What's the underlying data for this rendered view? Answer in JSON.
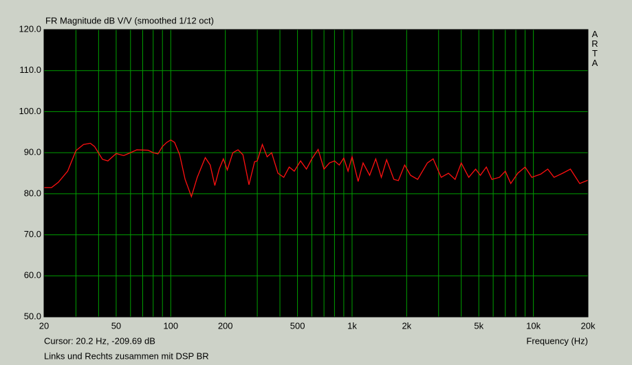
{
  "chart_data": {
    "type": "line",
    "title": "FR Magnitude dB V/V (smoothed 1/12 oct)",
    "brand": "ARTA",
    "cursor_text": "Cursor: 20.2 Hz, -209.69 dB",
    "note": "Links und Rechts zusammen mit DSP BR",
    "x_label": "Frequency (Hz)",
    "log_x": true,
    "grid": true,
    "color": "#ff1010",
    "xlim": [
      20,
      20000
    ],
    "ylim": [
      50,
      120
    ],
    "xticks": [
      20,
      50,
      100,
      200,
      500,
      {
        "value": 1000,
        "label": "1k"
      },
      {
        "value": 2000,
        "label": "2k"
      },
      {
        "value": 5000,
        "label": "5k"
      },
      {
        "value": 10000,
        "label": "10k"
      },
      {
        "value": 20000,
        "label": "20k"
      }
    ],
    "xminorticks": [
      30,
      40,
      60,
      70,
      80,
      90,
      300,
      400,
      600,
      700,
      800,
      900,
      3000,
      4000,
      6000,
      7000,
      8000,
      9000
    ],
    "yticks": [
      {
        "value": 50,
        "label": "50.0"
      },
      {
        "value": 60,
        "label": "60.0"
      },
      {
        "value": 70,
        "label": "70.0"
      },
      {
        "value": 80,
        "label": "80.0"
      },
      {
        "value": 90,
        "label": "90.0"
      },
      {
        "value": 100,
        "label": "100.0"
      },
      {
        "value": 110,
        "label": "110.0"
      },
      {
        "value": 120,
        "label": "120.0"
      }
    ],
    "x": [
      20,
      22,
      24,
      27,
      30,
      33,
      36,
      38,
      42,
      45,
      50,
      55,
      60,
      65,
      75,
      80,
      85,
      90,
      95,
      100,
      105,
      112,
      120,
      130,
      140,
      155,
      165,
      175,
      185,
      195,
      205,
      220,
      235,
      250,
      270,
      290,
      300,
      320,
      340,
      360,
      390,
      420,
      450,
      480,
      520,
      560,
      600,
      650,
      700,
      750,
      800,
      850,
      900,
      950,
      1000,
      1080,
      1150,
      1250,
      1350,
      1450,
      1550,
      1700,
      1800,
      1950,
      2100,
      2300,
      2600,
      2800,
      3100,
      3400,
      3700,
      4000,
      4400,
      4800,
      5100,
      5500,
      5900,
      6500,
      7000,
      7500,
      8200,
      9000,
      9800,
      11000,
      12000,
      13000,
      14500,
      16000,
      18000,
      20000
    ],
    "values": [
      81.5,
      81.5,
      82.8,
      85.5,
      90.5,
      92,
      92.3,
      91.5,
      88.4,
      88,
      89.8,
      89.3,
      90,
      90.7,
      90.6,
      90,
      89.7,
      91.5,
      92.5,
      93.1,
      92.5,
      89.5,
      83.5,
      79.3,
      84,
      88.8,
      87,
      82,
      86,
      88.5,
      85.8,
      90,
      90.7,
      89.5,
      82.2,
      87.8,
      88,
      92,
      89,
      90,
      85,
      84,
      86.5,
      85.5,
      88,
      86,
      88.5,
      90.8,
      86,
      87.5,
      88,
      87,
      88.7,
      85.5,
      89,
      83,
      87.5,
      84.5,
      88.5,
      84,
      88.3,
      83.5,
      83.2,
      87,
      84.5,
      83.5,
      87.5,
      88.5,
      84,
      85,
      83.5,
      87.5,
      84,
      86,
      84.5,
      86.5,
      83.5,
      84,
      85.5,
      82.5,
      85,
      86.5,
      84,
      84.8,
      86,
      84,
      85,
      86,
      82.5,
      83.3
    ]
  }
}
